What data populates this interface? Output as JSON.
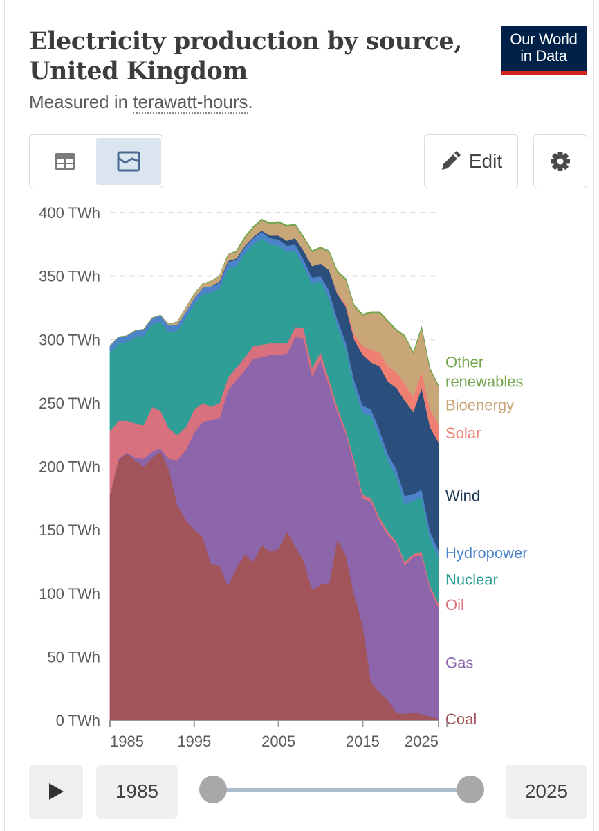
{
  "header": {
    "title": "Electricity production by source, United Kingdom",
    "subtitle_prefix": "Measured in ",
    "subtitle_unit": "terawatt-hours",
    "subtitle_suffix": "."
  },
  "logo": {
    "line1": "Our World",
    "line2": "in Data"
  },
  "toolbar": {
    "table_icon": "table-icon",
    "chart_icon": "chart-icon",
    "edit_label": "Edit",
    "edit_icon": "pencil-icon",
    "settings_icon": "gear-icon"
  },
  "timeline": {
    "start_year": "1985",
    "end_year": "2025",
    "play_icon": "play-icon"
  },
  "colors": {
    "Coal": "#a1555a",
    "Gas": "#8c65ab",
    "Oil": "#d8707e",
    "Nuclear": "#2f9e97",
    "Hydropower": "#4c82c8",
    "Wind": "#2b4f7d",
    "Solar": "#ee7f72",
    "Bioenergy": "#c9a678",
    "Other renewables": "#73a64e"
  },
  "chart_data": {
    "type": "area",
    "stacked": true,
    "x": [
      1985,
      1986,
      1987,
      1988,
      1989,
      1990,
      1991,
      1992,
      1993,
      1994,
      1995,
      1996,
      1997,
      1998,
      1999,
      2000,
      2001,
      2002,
      2003,
      2004,
      2005,
      2006,
      2007,
      2008,
      2009,
      2010,
      2011,
      2012,
      2013,
      2014,
      2015,
      2016,
      2017,
      2018,
      2019,
      2020,
      2021,
      2022,
      2023,
      2024
    ],
    "ylim": [
      0,
      400
    ],
    "y_ticks": [
      0,
      50,
      100,
      150,
      200,
      250,
      300,
      350,
      400
    ],
    "y_unit": " TWh",
    "x_ticks": [
      1985,
      1995,
      2005,
      2015,
      2025
    ],
    "grid": "horizontal dashed",
    "legend_position": "right (labels at series ends)",
    "series": [
      {
        "name": "Coal",
        "values": [
          178,
          205,
          210,
          205,
          200,
          207,
          212,
          198,
          170,
          158,
          150,
          145,
          123,
          122,
          106,
          120,
          131,
          125,
          138,
          133,
          135,
          149,
          137,
          126,
          103,
          107,
          108,
          143,
          130,
          99,
          75,
          30,
          22,
          16,
          6,
          5,
          6,
          5,
          3,
          1
        ]
      },
      {
        "name": "Gas",
        "values": [
          0,
          1,
          1,
          2,
          6,
          5,
          2,
          8,
          35,
          55,
          77,
          90,
          114,
          116,
          154,
          148,
          145,
          160,
          148,
          155,
          153,
          140,
          165,
          175,
          168,
          177,
          156,
          100,
          96,
          102,
          100,
          142,
          135,
          130,
          133,
          117,
          123,
          125,
          100,
          88
        ]
      },
      {
        "name": "Oil",
        "values": [
          50,
          30,
          25,
          27,
          27,
          35,
          30,
          24,
          20,
          18,
          18,
          15,
          10,
          12,
          10,
          10,
          10,
          10,
          10,
          9,
          9,
          8,
          8,
          8,
          7,
          6,
          5,
          4,
          3,
          4,
          3,
          3,
          3,
          3,
          2,
          3,
          2,
          3,
          3,
          3
        ]
      },
      {
        "name": "Nuclear",
        "values": [
          62,
          61,
          62,
          68,
          70,
          65,
          70,
          76,
          82,
          86,
          83,
          86,
          90,
          90,
          86,
          80,
          82,
          80,
          84,
          78,
          77,
          72,
          60,
          49,
          66,
          56,
          64,
          64,
          64,
          57,
          64,
          65,
          63,
          56,
          51,
          45,
          42,
          43,
          37,
          37
        ]
      },
      {
        "name": "Hydropower",
        "values": [
          5,
          5,
          5,
          5,
          5,
          5,
          5,
          5,
          5,
          5,
          5,
          5,
          5,
          5,
          5,
          5,
          5,
          5,
          5,
          5,
          5,
          5,
          5,
          5,
          5,
          4,
          6,
          5,
          5,
          6,
          6,
          5,
          6,
          5,
          6,
          7,
          5,
          6,
          6,
          5
        ]
      },
      {
        "name": "Wind",
        "values": [
          0,
          0,
          0,
          0,
          0,
          0,
          0,
          0,
          0,
          0,
          0,
          0,
          0,
          1,
          1,
          1,
          1,
          1,
          1,
          2,
          3,
          4,
          5,
          7,
          9,
          10,
          16,
          20,
          28,
          32,
          40,
          37,
          50,
          57,
          64,
          75,
          65,
          80,
          82,
          85
        ]
      },
      {
        "name": "Solar",
        "values": [
          0,
          0,
          0,
          0,
          0,
          0,
          0,
          0,
          0,
          0,
          0,
          0,
          0,
          0,
          0,
          0,
          0,
          0,
          0,
          0,
          0,
          0,
          0,
          0,
          0,
          0,
          0,
          1,
          2,
          4,
          7,
          10,
          11,
          12,
          12,
          13,
          12,
          13,
          14,
          14
        ]
      },
      {
        "name": "Bioenergy",
        "values": [
          0,
          0,
          0,
          0,
          0,
          0,
          0,
          1,
          2,
          3,
          3,
          3,
          4,
          4,
          5,
          5,
          6,
          7,
          8,
          9,
          10,
          11,
          10,
          10,
          11,
          12,
          14,
          16,
          19,
          22,
          24,
          29,
          31,
          35,
          33,
          37,
          34,
          34,
          31,
          30
        ]
      },
      {
        "name": "Other renewables",
        "values": [
          0,
          0,
          0,
          0,
          0,
          0,
          0,
          0,
          0,
          0,
          0,
          0,
          0,
          0,
          0,
          1,
          1,
          1,
          1,
          1,
          1,
          1,
          1,
          1,
          1,
          1,
          1,
          1,
          1,
          1,
          1,
          1,
          1,
          1,
          1,
          1,
          1,
          1,
          1,
          1
        ]
      }
    ]
  }
}
